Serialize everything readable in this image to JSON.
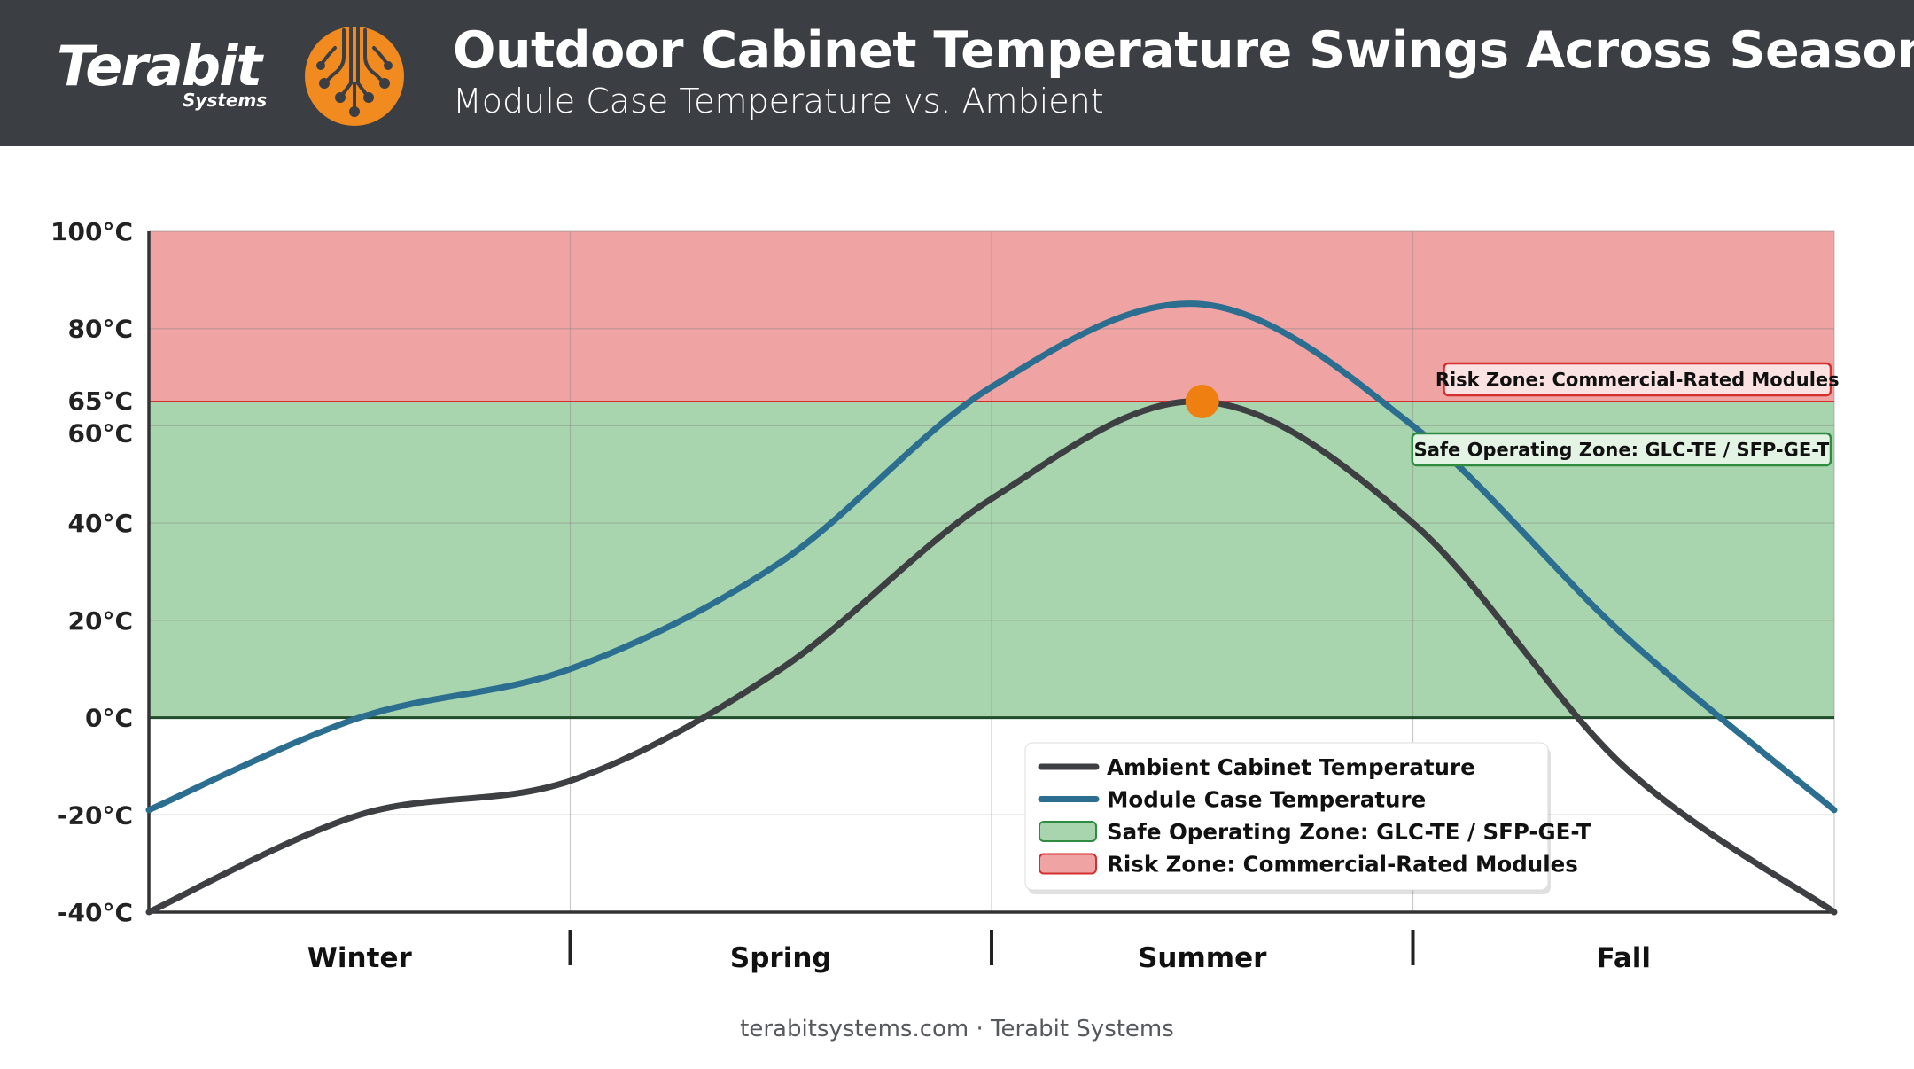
{
  "header": {
    "brand_name": "Terabit",
    "brand_sub": "Systems",
    "title": "Outdoor Cabinet Temperature Swings Across Seasons",
    "subtitle": "Module Case Temperature vs. Ambient"
  },
  "footer": {
    "text": "terabitsystems.com · Terabit Systems"
  },
  "colors": {
    "header_bg": "#3b3e43",
    "logo_orange": "#f28b1f",
    "ambient": "#3d3f43",
    "module": "#2b6e8f",
    "safe_zone": "#a8d5ad",
    "risk_zone": "#f0a3a3",
    "peak_marker": "#f07f12"
  },
  "chart_data": {
    "type": "line",
    "title": "Outdoor Cabinet Temperature Swings Across Seasons",
    "subtitle": "Module Case Temperature vs. Ambient",
    "xlabel": "",
    "ylabel": "",
    "categories": [
      "Winter",
      "Spring",
      "Summer",
      "Fall"
    ],
    "xlim": [
      0,
      4
    ],
    "ylim": [
      -40,
      100
    ],
    "y_ticks": [
      {
        "value": 100,
        "label": "100°C"
      },
      {
        "value": 80,
        "label": "80°C"
      },
      {
        "value": 65,
        "label": "65°C"
      },
      {
        "value": 60,
        "label": "60°C"
      },
      {
        "value": 40,
        "label": "40°C"
      },
      {
        "value": 20,
        "label": "20°C"
      },
      {
        "value": 0,
        "label": "0°C"
      },
      {
        "value": -20,
        "label": "-20°C"
      },
      {
        "value": -40,
        "label": "-40°C"
      }
    ],
    "grid": true,
    "series": [
      {
        "name": "Ambient Cabinet Temperature",
        "color": "#3d3f43",
        "x": [
          0,
          0.5,
          1.0,
          1.5,
          2.0,
          2.5,
          3.0,
          3.5,
          4.0
        ],
        "y": [
          -40,
          -20,
          -13,
          10,
          45,
          65,
          40,
          -10,
          -40
        ]
      },
      {
        "name": "Module Case Temperature",
        "color": "#2b6e8f",
        "x": [
          0,
          0.5,
          1.0,
          1.5,
          2.0,
          2.5,
          3.0,
          3.5,
          4.0
        ],
        "y": [
          -19,
          0,
          10,
          32,
          68,
          85,
          60,
          17,
          -19
        ]
      }
    ],
    "zones": [
      {
        "name": "Safe Operating Zone: GLC-TE / SFP-GE-T",
        "from": 0,
        "to": 65,
        "color": "#a8d5ad",
        "border": "#2e8b3f"
      },
      {
        "name": "Risk Zone: Commercial-Rated Modules",
        "from": 65,
        "to": 100,
        "color": "#f0a3a3",
        "border": "#d32f2f"
      }
    ],
    "annotations": [
      {
        "text": "Risk Zone: Commercial-Rated Modules",
        "position": "right"
      },
      {
        "text": "Safe Operating Zone: GLC-TE / SFP-GE-T",
        "position": "right"
      }
    ],
    "peak_marker": {
      "x": 2.5,
      "y": 65,
      "color": "#f07f12"
    },
    "legend": {
      "placement": "bottom-center-right",
      "entries": [
        {
          "label": "Ambient Cabinet Temperature",
          "kind": "line",
          "color": "#3d3f43"
        },
        {
          "label": "Module Case Temperature",
          "kind": "line",
          "color": "#2b6e8f"
        },
        {
          "label": "Safe Operating Zone: GLC-TE / SFP-GE-T",
          "kind": "box",
          "color": "#a8d5ad",
          "border": "#2e8b3f"
        },
        {
          "label": "Risk Zone: Commercial-Rated Modules",
          "kind": "box",
          "color": "#f0a3a3",
          "border": "#d32f2f"
        }
      ]
    }
  }
}
